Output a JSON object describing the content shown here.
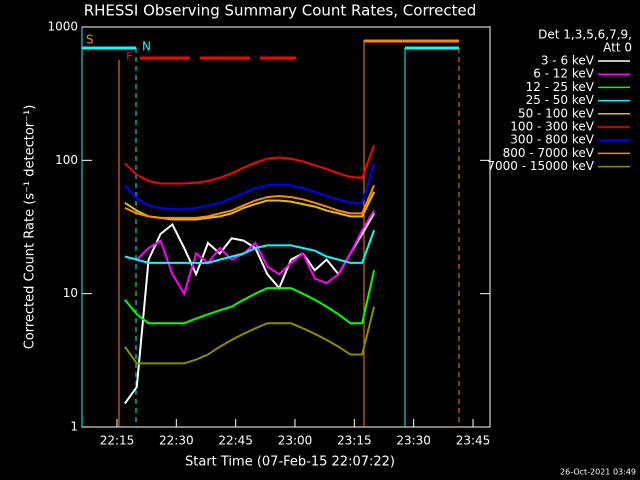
{
  "chart_data": {
    "type": "line",
    "title": "RHESSI Observing Summary Count Rates, Corrected",
    "x_label": "Start Time (07-Feb-15 22:07:22)",
    "y_label": "Corrected Count Rate (s⁻¹ detector⁻¹)",
    "log_y": true,
    "legend_header": [
      "Det 1,3,5,6,7,9,",
      "Att 0"
    ],
    "timestamp": "26-Oct-2021 03:49",
    "flag_labels": [
      "S",
      "N",
      "F"
    ],
    "xlim": [
      6.15,
      109.3
    ],
    "xticks": [
      {
        "value": 15,
        "label": "22:15"
      },
      {
        "value": 30,
        "label": "22:30"
      },
      {
        "value": 45,
        "label": "22:45"
      },
      {
        "value": 60,
        "label": "23:00"
      },
      {
        "value": 75,
        "label": "23:15"
      },
      {
        "value": 90,
        "label": "23:30"
      },
      {
        "value": 105,
        "label": "23:45"
      }
    ],
    "ylim": [
      1,
      1000
    ],
    "yticks": [
      1,
      10,
      100,
      1000
    ],
    "x": [
      17,
      20,
      23,
      26,
      29,
      32,
      35,
      38,
      41,
      44,
      47,
      50,
      53,
      56,
      59,
      62,
      65,
      68,
      71,
      74,
      77,
      80
    ],
    "series": [
      {
        "name": "3 - 6 keV",
        "color": "#ffffff",
        "values": [
          1.5,
          2,
          18,
          28,
          33,
          22,
          14,
          24,
          20,
          26,
          25,
          22,
          14,
          11,
          18,
          20,
          15,
          18,
          14,
          20,
          28,
          40
        ]
      },
      {
        "name": "6 - 12 keV",
        "color": "#ff00ff",
        "values": [
          null,
          18,
          22,
          25,
          14,
          10,
          20,
          17,
          22,
          18,
          20,
          24,
          16,
          14,
          17,
          20,
          13,
          12,
          14,
          20,
          30,
          42
        ]
      },
      {
        "name": "12 - 25 keV",
        "color": "#00ff00",
        "values": [
          9,
          7,
          6,
          6,
          6,
          6,
          6.5,
          7,
          7.5,
          8,
          9,
          10,
          11,
          11,
          11,
          10,
          9,
          8,
          7,
          6,
          6,
          15
        ]
      },
      {
        "name": "25 - 50 keV",
        "color": "#00ffff",
        "values": [
          19,
          18,
          17,
          17,
          17,
          17,
          17,
          17,
          18,
          19,
          20,
          22,
          23,
          23,
          23,
          22,
          21,
          19,
          18,
          17,
          17,
          30
        ]
      },
      {
        "name": "50 - 100 keV",
        "color": "#e0c000",
        "values": [
          48,
          42,
          38,
          37,
          36,
          36,
          36,
          37,
          38,
          40,
          44,
          47,
          50,
          50,
          49,
          47,
          45,
          42,
          40,
          38,
          38,
          58
        ]
      },
      {
        "name": "100 - 300 keV",
        "color": "#ff0000",
        "values": [
          95,
          78,
          70,
          67,
          67,
          67,
          68,
          70,
          74,
          80,
          88,
          96,
          103,
          105,
          103,
          98,
          92,
          86,
          80,
          75,
          74,
          130
        ]
      },
      {
        "name": "300 - 800 keV",
        "color": "#0000ff",
        "values": [
          65,
          52,
          46,
          44,
          43,
          43,
          44,
          46,
          48,
          52,
          57,
          62,
          65,
          66,
          65,
          62,
          58,
          54,
          51,
          48,
          48,
          95
        ]
      },
      {
        "name": "800 - 7000 keV",
        "color": "#ff8800",
        "values": [
          44,
          40,
          38,
          37,
          37,
          37,
          37,
          38,
          40,
          42,
          46,
          50,
          53,
          54,
          53,
          51,
          48,
          45,
          42,
          40,
          40,
          65
        ]
      },
      {
        "name": "7000 - 15000 keV",
        "color": "#8b8b00",
        "values": [
          4,
          3,
          3,
          3,
          3,
          3,
          3.2,
          3.5,
          4,
          4.5,
          5,
          5.5,
          6,
          6,
          6,
          5.5,
          5,
          4.5,
          4,
          3.5,
          3.5,
          8
        ]
      }
    ]
  }
}
